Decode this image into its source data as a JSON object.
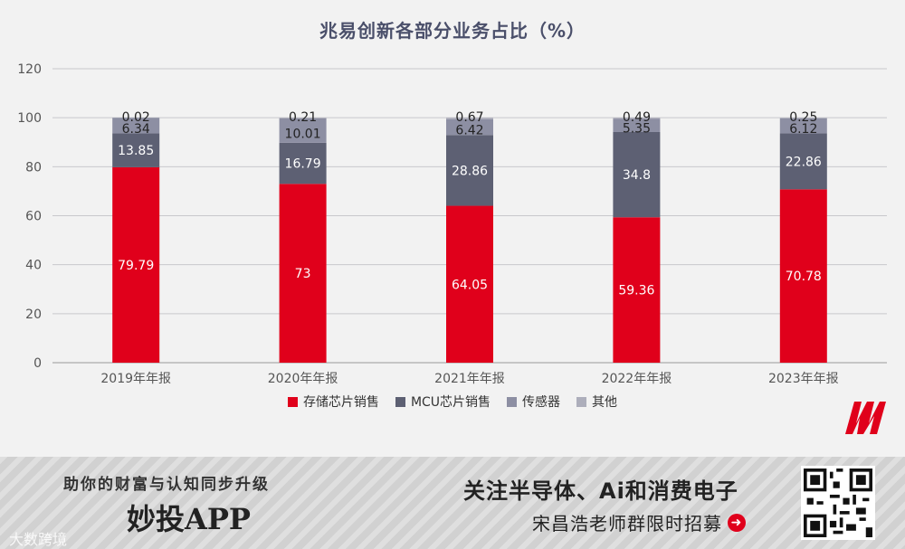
{
  "chart_data": {
    "type": "bar",
    "stacked": true,
    "title": "兆易创新各部分业务占比（%）",
    "categories": [
      "2019年年报",
      "2020年年报",
      "2021年年报",
      "2022年年报",
      "2023年年报"
    ],
    "ylim": [
      0,
      120
    ],
    "yticks": [
      "0",
      "20",
      "40",
      "60",
      "80",
      "100",
      "120"
    ],
    "grid": true,
    "legend_position": "bottom",
    "series": [
      {
        "name": "存储芯片销售",
        "color": "#e0001b",
        "values": [
          79.79,
          73,
          64.05,
          59.36,
          70.78
        ],
        "labels": [
          "79.79",
          "73",
          "64.05",
          "59.36",
          "70.78"
        ]
      },
      {
        "name": "MCU芯片销售",
        "color": "#5d6073",
        "values": [
          13.85,
          16.79,
          28.86,
          34.8,
          22.86
        ],
        "labels": [
          "13.85",
          "16.79",
          "28.86",
          "34.8",
          "22.86"
        ]
      },
      {
        "name": "传感器",
        "color": "#8d8fa3",
        "values": [
          6.34,
          10.01,
          6.42,
          5.35,
          6.12
        ],
        "labels": [
          "6.34",
          "10.01",
          "6.42",
          "5.35",
          "6.12"
        ]
      },
      {
        "name": "其他",
        "color": "#adaebb",
        "values": [
          0.02,
          0.21,
          0.67,
          0.49,
          0.25
        ],
        "labels": [
          "0.02",
          "0.21",
          "0.67",
          "0.49",
          "0.25"
        ]
      }
    ]
  },
  "banner": {
    "slogan": "助你的财富与认知同步升级",
    "app_name": "妙投APP",
    "watermark": "大数跨境",
    "headline": "关注半导体、Ai和消费电子",
    "subline": "宋昌浩老师群限时招募",
    "arrow_icon": "arrow-right-circle-icon"
  }
}
